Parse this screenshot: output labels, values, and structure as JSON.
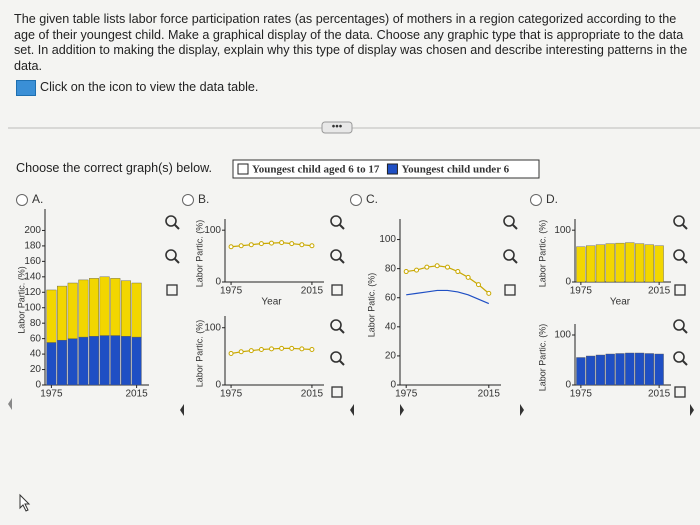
{
  "question": {
    "text": "The given table lists labor force participation rates (as percentages) of mothers in a region categorized according to the age of their youngest child. Make a graphical display of the data. Choose any graphic type that is appropriate to the data set. In addition to making the display, explain why this type of display was chosen and describe interesting patterns in the data.",
    "link": "Click on the icon to view the data table."
  },
  "prompt": "Choose the correct graph(s) below.",
  "legend": [
    {
      "name": "Youngest child aged 6 to 17",
      "color": "#f2d600"
    },
    {
      "name": "Youngest child under 6",
      "color": "#1f4fc4"
    }
  ],
  "options": [
    {
      "label": "A.",
      "charts": [
        {
          "type": "stacked_bar",
          "ylabel": "Labor Partic. (%)",
          "x": [
            1975,
            1980,
            1985,
            1990,
            1995,
            2000,
            2005,
            2010,
            2015
          ],
          "xlim": [
            1972,
            2018
          ],
          "xticks": [
            1975,
            2015
          ],
          "ylim": [
            0,
            220
          ],
          "yticks": [
            0,
            20,
            40,
            60,
            80,
            100,
            120,
            140,
            160,
            180,
            200
          ],
          "series": [
            {
              "color": "#1f4fc4",
              "values": [
                55,
                58,
                60,
                62,
                63,
                64,
                64,
                63,
                62
              ]
            },
            {
              "color": "#f2d600",
              "values": [
                68,
                70,
                72,
                74,
                75,
                76,
                74,
                72,
                70
              ]
            }
          ]
        }
      ]
    },
    {
      "label": "B.",
      "charts": [
        {
          "type": "line",
          "ylabel": "Labor Partic. (%)",
          "xlabel": "Year",
          "x": [
            1975,
            1980,
            1985,
            1990,
            1995,
            2000,
            2005,
            2010,
            2015
          ],
          "xlim": [
            1972,
            2018
          ],
          "xticks": [
            1975,
            2015
          ],
          "ylim": [
            0,
            110
          ],
          "yticks": [
            0,
            100
          ],
          "series": [
            {
              "color": "#c9a800",
              "values": [
                68,
                70,
                72,
                74,
                75,
                76,
                74,
                72,
                70
              ]
            }
          ]
        },
        {
          "type": "line",
          "ylabel": "Labor Partic. (%)",
          "x": [
            1975,
            1980,
            1985,
            1990,
            1995,
            2000,
            2005,
            2010,
            2015
          ],
          "xlim": [
            1972,
            2018
          ],
          "xticks": [
            1975,
            2015
          ],
          "ylim": [
            0,
            110
          ],
          "yticks": [
            0,
            100
          ],
          "series": [
            {
              "color": "#c9a800",
              "values": [
                55,
                58,
                60,
                62,
                63,
                64,
                64,
                63,
                62
              ]
            }
          ]
        }
      ]
    },
    {
      "label": "C.",
      "charts": [
        {
          "type": "line",
          "ylabel": "Labor Patic. (%)",
          "x": [
            1975,
            1980,
            1985,
            1990,
            1995,
            2000,
            2005,
            2010,
            2015
          ],
          "xlim": [
            1972,
            2018
          ],
          "xticks": [
            1975,
            2015
          ],
          "ylim": [
            0,
            110
          ],
          "yticks": [
            0,
            20,
            40,
            60,
            80,
            100
          ],
          "series": [
            {
              "color": "#c9a800",
              "values": [
                78,
                79,
                81,
                82,
                81,
                78,
                74,
                69,
                63
              ],
              "markers": true
            },
            {
              "color": "#1f4fc4",
              "values": [
                62,
                63,
                64,
                65,
                65,
                64,
                62,
                59,
                56
              ],
              "markers": false
            }
          ]
        }
      ]
    },
    {
      "label": "D.",
      "charts": [
        {
          "type": "bar",
          "ylabel": "Labor Partic. (%)",
          "xlabel": "Year",
          "x": [
            1975,
            1980,
            1985,
            1990,
            1995,
            2000,
            2005,
            2010,
            2015
          ],
          "xlim": [
            1972,
            2018
          ],
          "xticks": [
            1975,
            2015
          ],
          "ylim": [
            0,
            110
          ],
          "yticks": [
            0,
            100
          ],
          "series": [
            {
              "color": "#f2d600",
              "values": [
                68,
                70,
                72,
                74,
                75,
                76,
                74,
                72,
                70
              ]
            }
          ]
        },
        {
          "type": "bar",
          "ylabel": "Labor Partic. (%)",
          "x": [
            1975,
            1980,
            1985,
            1990,
            1995,
            2000,
            2005,
            2010,
            2015
          ],
          "xlim": [
            1972,
            2018
          ],
          "xticks": [
            1975,
            2015
          ],
          "ylim": [
            0,
            110
          ],
          "yticks": [
            0,
            100
          ],
          "series": [
            {
              "color": "#1f4fc4",
              "values": [
                55,
                58,
                60,
                62,
                63,
                64,
                64,
                63,
                62
              ]
            }
          ]
        }
      ]
    }
  ]
}
